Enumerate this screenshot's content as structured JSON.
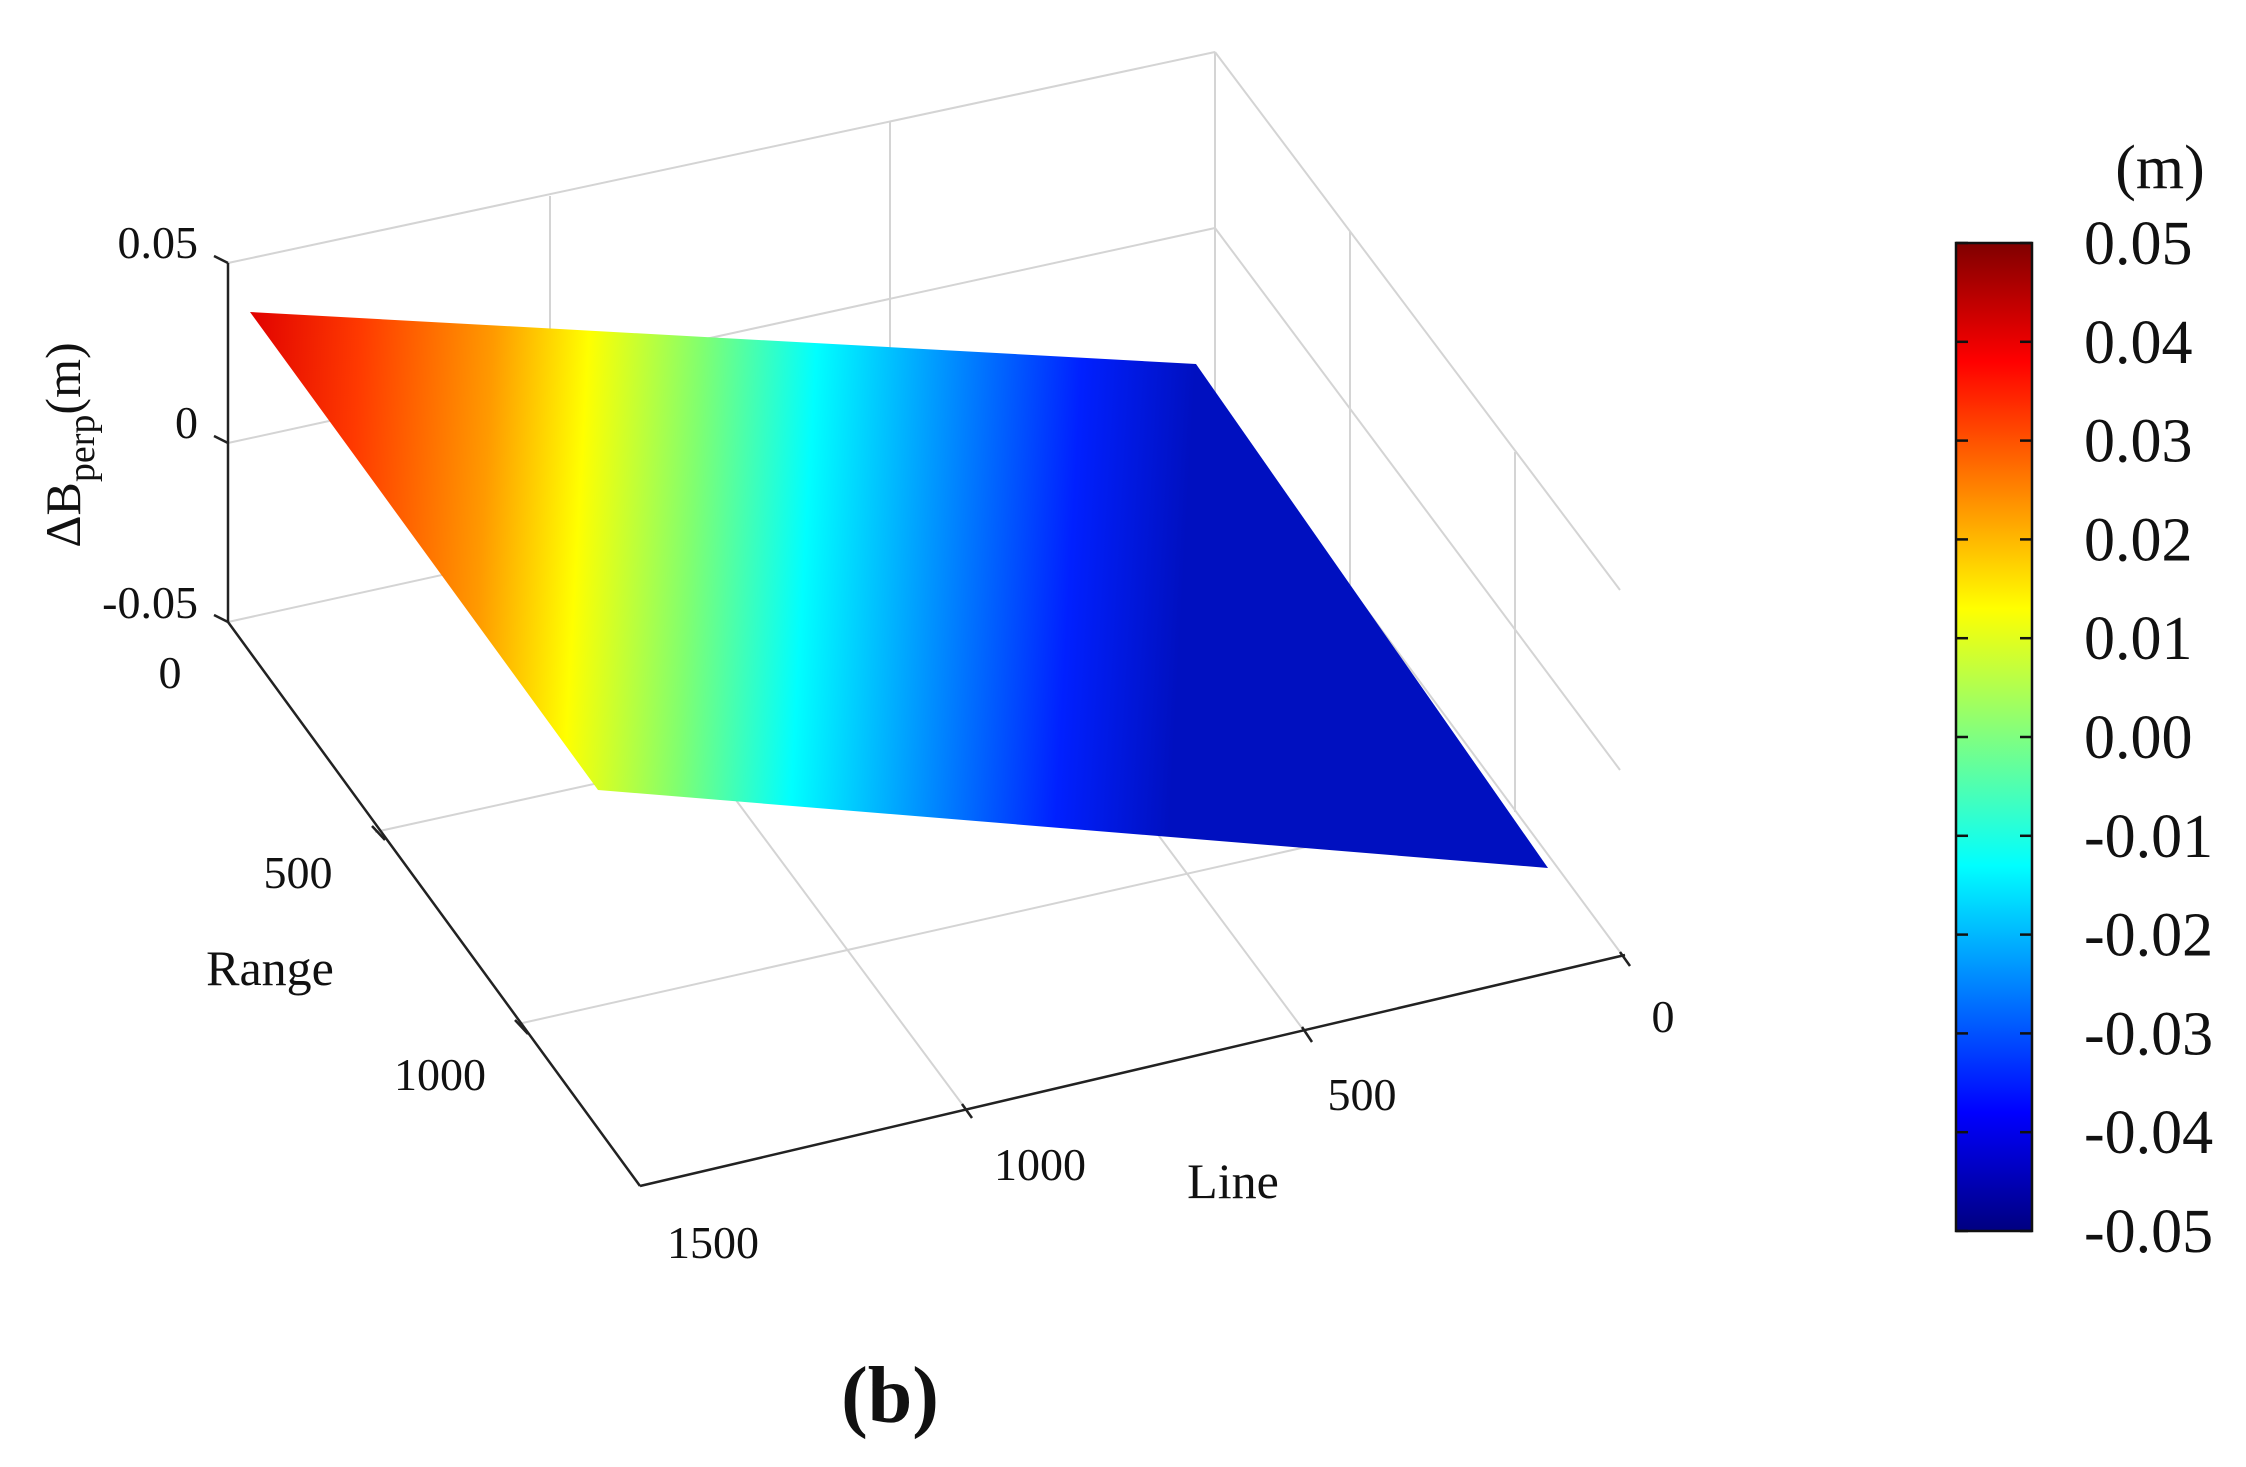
{
  "chart_data": {
    "type": "surface",
    "panel_label": "(b)",
    "xlabel": "Line",
    "ylabel": "Range",
    "zlabel_main": "ΔB",
    "zlabel_sub": "perp",
    "zlabel_unit": "(m)",
    "x_ticks": [
      "0",
      "500",
      "1000"
    ],
    "y_ticks": [
      "0",
      "500",
      "1000",
      "1500"
    ],
    "z_ticks": [
      "0.05",
      "0",
      "-0.05"
    ],
    "xlim": [
      0,
      1500
    ],
    "ylim": [
      0,
      1500
    ],
    "zlim": [
      -0.05,
      0.05
    ],
    "surface": {
      "corners": [
        {
          "line": 0,
          "range": 0,
          "value": -0.05
        },
        {
          "line": 1500,
          "range": 0,
          "value": 0.05
        },
        {
          "line": 1500,
          "range": 1500,
          "value": 0.05
        },
        {
          "line": 0,
          "range": 1500,
          "value": -0.05
        }
      ],
      "gradient_direction": "value increases with Line, constant along Range"
    },
    "grid": true,
    "colorbar": {
      "unit": "(m)",
      "colormap": "jet",
      "range": [
        -0.05,
        0.05
      ],
      "ticks": [
        "0.05",
        "0.04",
        "0.03",
        "0.02",
        "0.01",
        "0.00",
        "-0.01",
        "-0.02",
        "-0.03",
        "-0.04",
        "-0.05"
      ]
    }
  }
}
